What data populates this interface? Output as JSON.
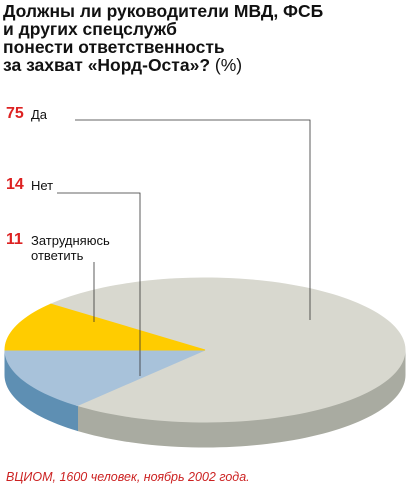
{
  "chart_data": {
    "type": "pie3d",
    "title_lines": [
      "Должны ли руководители МВД, ФСБ",
      "и других спецслужб",
      "понести ответственность",
      "за захват «Норд-Оста»?"
    ],
    "unit": "(%)",
    "categories": [
      "Да",
      "Нет",
      "Затрудняюсь ответить"
    ],
    "values": [
      75,
      14,
      11
    ],
    "colors": [
      "#d8d8cf",
      "#a8c2da",
      "#ffcc00"
    ],
    "side_colors": [
      "#a9aba1",
      "#5e8fb3",
      "#d9a800"
    ],
    "source": "ВЦИОМ, 1600 человек, ноябрь 2002 года."
  }
}
